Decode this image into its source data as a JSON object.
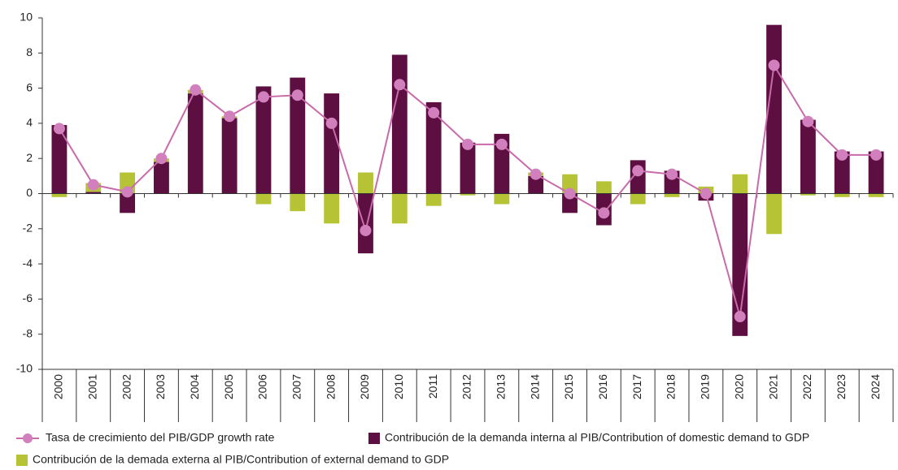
{
  "chart_data": {
    "type": "bar_line",
    "categories": [
      "2000",
      "2001",
      "2002",
      "2003",
      "2004",
      "2005",
      "2006",
      "2007",
      "2008",
      "2009",
      "2010",
      "2011",
      "2012",
      "2013",
      "2014",
      "2015",
      "2016",
      "2017",
      "2018",
      "2019",
      "2020",
      "2021",
      "2022",
      "2023",
      "2024"
    ],
    "series": [
      {
        "name": "Tasa de crecimiento del PIB/GDP growth rate",
        "type": "line",
        "color": "#c96aaa",
        "values": [
          3.7,
          0.5,
          0.1,
          2.0,
          5.9,
          4.4,
          5.5,
          5.6,
          4.0,
          -2.1,
          6.2,
          4.6,
          2.8,
          2.8,
          1.1,
          0.0,
          -1.1,
          1.3,
          1.1,
          0.0,
          -7.0,
          7.3,
          4.1,
          2.2,
          2.2
        ]
      },
      {
        "name": "Contribución de la demanda interna al PIB/Contribution of domestic demand to GDP",
        "type": "bar",
        "color": "#5c0f40",
        "values": [
          3.9,
          0.1,
          -1.1,
          1.8,
          5.7,
          4.3,
          6.1,
          6.6,
          5.7,
          -3.4,
          7.9,
          5.2,
          2.9,
          3.4,
          1.0,
          -1.1,
          -1.8,
          1.9,
          1.3,
          -0.4,
          -8.1,
          9.6,
          4.2,
          2.4,
          2.4
        ]
      },
      {
        "name": "Contribución de la demada externa al PIB/Contribution of external demand to GDP",
        "type": "bar",
        "color": "#b5c334",
        "values": [
          -0.2,
          0.5,
          1.2,
          0.2,
          0.2,
          0.1,
          -0.6,
          -1.0,
          -1.7,
          1.2,
          -1.7,
          -0.7,
          -0.1,
          -0.6,
          0.2,
          1.1,
          0.7,
          -0.6,
          -0.2,
          0.4,
          1.1,
          -2.3,
          -0.1,
          -0.2,
          -0.2
        ]
      }
    ],
    "stacked": true,
    "ylim": [
      -10,
      10
    ],
    "yticks": [
      -10,
      -8,
      -6,
      -4,
      -2,
      0,
      2,
      4,
      6,
      8,
      10
    ]
  }
}
